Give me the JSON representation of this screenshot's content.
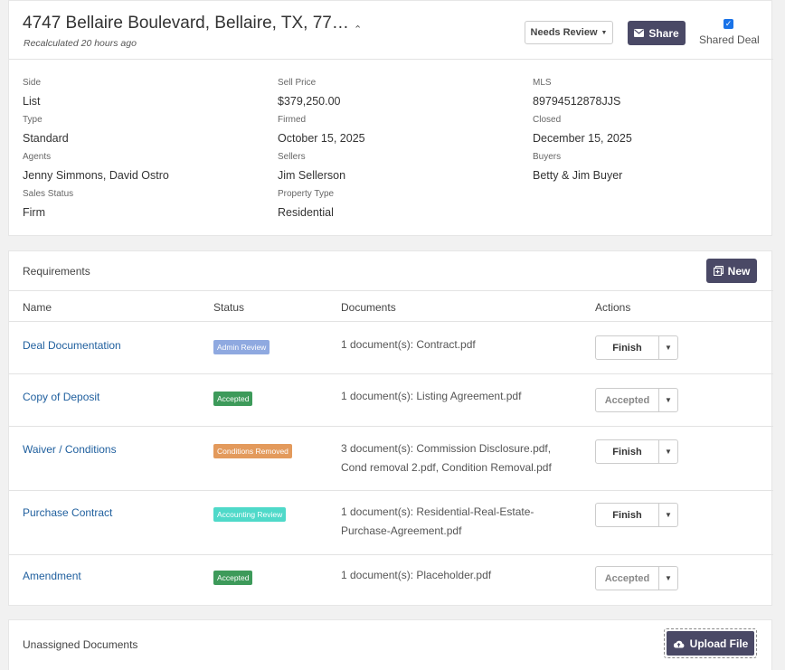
{
  "deal": {
    "address": "4747 Bellaire Boulevard, Bellaire, TX, 77…",
    "recalculated": "Recalculated 20 hours ago",
    "status_dropdown": "Needs Review",
    "share_label": "Share",
    "shared_deal_label": "Shared Deal",
    "shared_deal_checked": true,
    "fields": {
      "side": {
        "label": "Side",
        "value": "List"
      },
      "type": {
        "label": "Type",
        "value": "Standard"
      },
      "agents": {
        "label": "Agents",
        "value": "Jenny Simmons, David Ostro"
      },
      "sales_status": {
        "label": "Sales Status",
        "value": "Firm"
      },
      "sell_price": {
        "label": "Sell Price",
        "value": "$379,250.00"
      },
      "firmed": {
        "label": "Firmed",
        "value": "October 15, 2025"
      },
      "sellers": {
        "label": "Sellers",
        "value": "Jim Sellerson"
      },
      "property_type": {
        "label": "Property Type",
        "value": "Residential"
      },
      "mls": {
        "label": "MLS",
        "value": "89794512878JJS"
      },
      "closed": {
        "label": "Closed",
        "value": "December 15, 2025"
      },
      "buyers": {
        "label": "Buyers",
        "value": "Betty & Jim Buyer"
      }
    }
  },
  "requirements": {
    "title": "Requirements",
    "new_label": "New",
    "columns": {
      "name": "Name",
      "status": "Status",
      "documents": "Documents",
      "actions": "Actions"
    },
    "rows": [
      {
        "name": "Deal Documentation",
        "status": "Admin Review",
        "status_color": "#8fa9e0",
        "docs_line1": "1 document(s): Contract.pdf",
        "docs_line2": "",
        "action": "Finish",
        "action_disabled": false
      },
      {
        "name": "Copy of Deposit",
        "status": "Accepted",
        "status_color": "#3d9a5a",
        "docs_line1": "1 document(s): Listing Agreement.pdf",
        "docs_line2": "",
        "action": "Accepted",
        "action_disabled": true
      },
      {
        "name": "Waiver / Conditions",
        "status": "Conditions Removed",
        "status_color": "#e39a5c",
        "docs_line1": "3 document(s): Commission Disclosure.pdf,",
        "docs_line2": "Cond removal 2.pdf, Condition Removal.pdf",
        "action": "Finish",
        "action_disabled": false
      },
      {
        "name": "Purchase Contract",
        "status": "Accounting Review",
        "status_color": "#4fd9c9",
        "docs_line1": "1 document(s): Residential-Real-Estate-",
        "docs_line2": "Purchase-Agreement.pdf",
        "action": "Finish",
        "action_disabled": false
      },
      {
        "name": "Amendment",
        "status": "Accepted",
        "status_color": "#3d9a5a",
        "docs_line1": "1 document(s): Placeholder.pdf",
        "docs_line2": "",
        "action": "Accepted",
        "action_disabled": true
      }
    ]
  },
  "unassigned": {
    "title": "Unassigned Documents",
    "upload_label": "Upload File"
  }
}
